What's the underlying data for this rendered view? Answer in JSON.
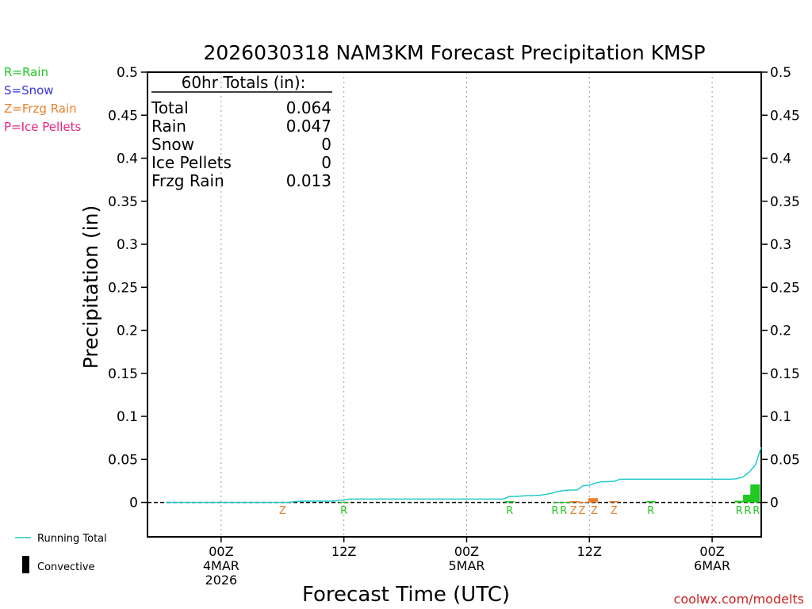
{
  "chart_data": {
    "type": "bar",
    "title": "2026030318 NAM3KM Forecast Precipitation KMSP",
    "ylabel": "Precipitation (in)",
    "xlabel": "Forecast Time (UTC)",
    "ylim": [
      -0.04,
      0.5
    ],
    "y_ticks": [
      0,
      0.05,
      0.1,
      0.15,
      0.2,
      0.25,
      0.3,
      0.35,
      0.4,
      0.45,
      0.5
    ],
    "y_tick_labels": [
      "0",
      "0.05",
      "0.1",
      "0.15",
      "0.2",
      "0.25",
      "0.3",
      "0.35",
      "0.4",
      "0.45",
      "0.5"
    ],
    "xlim": [
      -6,
      44
    ],
    "x_ticks": [
      {
        "hour": 0,
        "lines": [
          "00Z",
          "4MAR",
          "2026"
        ]
      },
      {
        "hour": 10,
        "lines": [
          "12Z"
        ]
      },
      {
        "hour": 20,
        "lines": [
          "00Z",
          "5MAR"
        ]
      },
      {
        "hour": 30,
        "lines": [
          "12Z"
        ]
      },
      {
        "hour": 40,
        "lines": [
          "00Z",
          "6MAR"
        ]
      }
    ],
    "totals_box": {
      "heading": "60hr Totals (in):",
      "rows": [
        {
          "label": "Total",
          "value": "0.064"
        },
        {
          "label": "Rain",
          "value": "0.047"
        },
        {
          "label": "Snow",
          "value": "0"
        },
        {
          "label": "Ice Pellets",
          "value": "0"
        },
        {
          "label": "Frzg Rain",
          "value": "0.013"
        }
      ]
    },
    "running_total": {
      "name": "Running Total",
      "x": [
        -4.5,
        -4,
        -3.5,
        -3,
        -2.5,
        -2,
        -1.5,
        -1,
        -0.5,
        0,
        0.5,
        1,
        1.5,
        2,
        2.5,
        3,
        3.5,
        4,
        4.5,
        5,
        5.5,
        6,
        6.5,
        7,
        7.5,
        8,
        8.5,
        9,
        9.5,
        10,
        10.5,
        11,
        11.5,
        12,
        12.5,
        13,
        13.5,
        14,
        14.5,
        15,
        15.5,
        16,
        16.5,
        17,
        17.5,
        18,
        18.5,
        19,
        19.5,
        20,
        20.5,
        21,
        21.5,
        22,
        22.5,
        23,
        23.5,
        24,
        24.5,
        25,
        25.5,
        26,
        26.5,
        27,
        27.5,
        28,
        28.5,
        29,
        29.5,
        30,
        30.5,
        31,
        31.5,
        32,
        32.5,
        33,
        33.5,
        34,
        34.5,
        35,
        35.5,
        36,
        36.5,
        37,
        37.5,
        38,
        38.5,
        39,
        39.5,
        40,
        40.5,
        41,
        41.5,
        42,
        42.5,
        43,
        43.5,
        44
      ],
      "y": [
        0,
        0,
        0,
        0,
        0,
        0,
        0,
        0,
        0,
        0,
        0,
        0,
        0,
        0,
        0,
        0,
        0,
        0,
        0,
        0,
        0,
        0.001,
        0.0015,
        0.0015,
        0.0015,
        0.0015,
        0.0015,
        0.0015,
        0.002,
        0.003,
        0.004,
        0.004,
        0.004,
        0.004,
        0.004,
        0.004,
        0.004,
        0.004,
        0.004,
        0.004,
        0.004,
        0.004,
        0.004,
        0.004,
        0.004,
        0.004,
        0.004,
        0.004,
        0.004,
        0.004,
        0.004,
        0.004,
        0.004,
        0.004,
        0.004,
        0.004,
        0.007,
        0.007,
        0.0075,
        0.008,
        0.008,
        0.0085,
        0.0095,
        0.011,
        0.013,
        0.014,
        0.0145,
        0.0145,
        0.0195,
        0.02,
        0.0225,
        0.024,
        0.024,
        0.0245,
        0.027,
        0.027,
        0.027,
        0.027,
        0.027,
        0.027,
        0.027,
        0.027,
        0.027,
        0.027,
        0.027,
        0.027,
        0.027,
        0.027,
        0.027,
        0.027,
        0.027,
        0.027,
        0.027,
        0.0275,
        0.0295,
        0.035,
        0.043,
        0.064
      ]
    },
    "series": [
      {
        "name": "Rain",
        "symbol": "R",
        "color": "#22c922",
        "bars": [
          [
            10,
            0.0005
          ],
          [
            23.5,
            0.0015
          ],
          [
            27.5,
            0.0005
          ],
          [
            28.2,
            0.0005
          ],
          [
            35,
            0.0015
          ],
          [
            42.2,
            0.002
          ],
          [
            42.9,
            0.009
          ],
          [
            43.5,
            0.021
          ]
        ],
        "markers": [
          10,
          23.5,
          27.2,
          27.9,
          35,
          42.2,
          42.9,
          43.6
        ]
      },
      {
        "name": "Frzg Rain",
        "symbol": "Z",
        "color": "#e8802c",
        "bars": [
          [
            5,
            0.0005
          ],
          [
            28.8,
            0.0015
          ],
          [
            29.5,
            0.0005
          ],
          [
            30.3,
            0.005
          ],
          [
            32,
            0.0015
          ]
        ],
        "markers": [
          5,
          28.7,
          29.4,
          30.4,
          32
        ]
      },
      {
        "name": "Snow",
        "symbol": "S",
        "color": "#3434e0",
        "bars": [],
        "markers": []
      },
      {
        "name": "Ice Pellets",
        "symbol": "P",
        "color": "#e8247c",
        "bars": [],
        "markers": []
      }
    ],
    "legend_left": [
      {
        "text": "R=Rain",
        "color": "#22c922"
      },
      {
        "text": "S=Snow",
        "color": "#3434e0"
      },
      {
        "text": "Z=Frzg Rain",
        "color": "#e8802c"
      },
      {
        "text": "P=Ice Pellets",
        "color": "#e8247c"
      }
    ],
    "legend_bottom": [
      {
        "text": "Running Total",
        "kind": "line",
        "color": "#1ac8c8"
      },
      {
        "text": "Convective",
        "kind": "bar",
        "color": "#000000"
      }
    ],
    "credit": "coolwx.com/modelts",
    "credit_color": "#cc2222",
    "zero_line_color": "#000000",
    "grid_color": "#9a9a9a"
  }
}
